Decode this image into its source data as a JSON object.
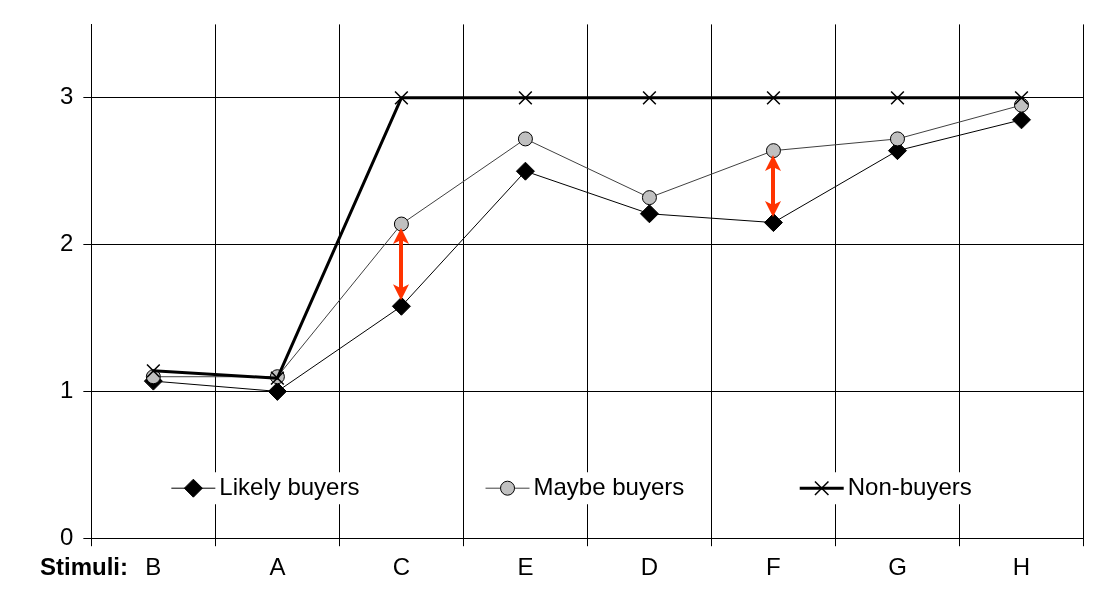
{
  "chart_data": {
    "type": "line",
    "xlabel": "Stimuli:",
    "categories": [
      "B",
      "A",
      "C",
      "E",
      "D",
      "F",
      "G",
      "H"
    ],
    "series": [
      {
        "name": "Likely buyers",
        "color": "#000000",
        "marker": "diamond",
        "values": [
          1.07,
          1.0,
          1.58,
          2.5,
          2.21,
          2.15,
          2.64,
          2.85
        ]
      },
      {
        "name": "Maybe buyers",
        "color": "#c0c0c0",
        "marker": "circle",
        "values": [
          1.1,
          1.1,
          2.14,
          2.72,
          2.32,
          2.64,
          2.72,
          2.95
        ]
      },
      {
        "name": "Non-buyers",
        "color": "#000000",
        "marker": "cross",
        "values": [
          1.14,
          1.09,
          3,
          3,
          3,
          3,
          3,
          3
        ]
      }
    ],
    "ylim": [
      0,
      3.5
    ],
    "yticks": [
      0,
      1,
      2,
      3
    ],
    "grid": true,
    "legend": "bottom"
  }
}
